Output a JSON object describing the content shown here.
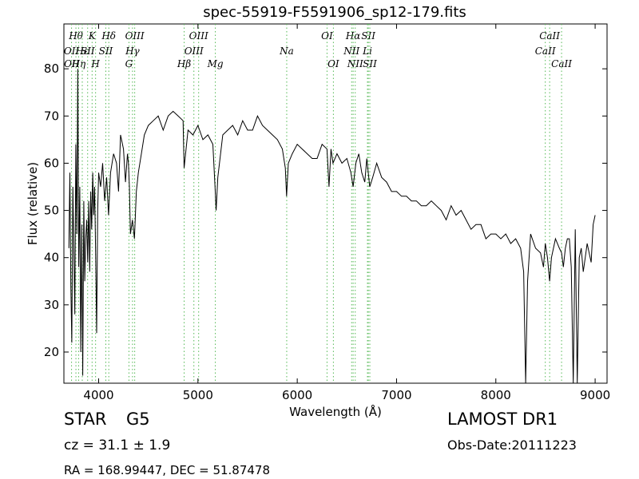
{
  "chart_data": {
    "type": "line",
    "title": "spec-55919-F5591906_sp12-179.fits",
    "xlabel": "Wavelength (Å)",
    "ylabel": "Flux (relative)",
    "xlim": [
      3650,
      9120
    ],
    "ylim": [
      13.4,
      89.5
    ],
    "x_ticks": [
      4000,
      5000,
      6000,
      7000,
      8000,
      9000
    ],
    "y_ticks": [
      20,
      30,
      40,
      50,
      60,
      70,
      80
    ],
    "grid": false,
    "series": [
      {
        "color": "#000000",
        "x": [
          3700,
          3710,
          3720,
          3730,
          3740,
          3750,
          3760,
          3770,
          3780,
          3790,
          3800,
          3810,
          3820,
          3830,
          3840,
          3850,
          3860,
          3870,
          3880,
          3890,
          3900,
          3910,
          3920,
          3930,
          3940,
          3950,
          3960,
          3970,
          3980,
          3990,
          4000,
          4020,
          4040,
          4060,
          4080,
          4100,
          4120,
          4150,
          4180,
          4200,
          4220,
          4250,
          4270,
          4290,
          4300,
          4310,
          4320,
          4340,
          4360,
          4380,
          4400,
          4430,
          4460,
          4500,
          4550,
          4600,
          4650,
          4700,
          4750,
          4800,
          4850,
          4861,
          4900,
          4950,
          5000,
          5050,
          5100,
          5150,
          5172,
          5183,
          5200,
          5250,
          5300,
          5350,
          5400,
          5450,
          5500,
          5550,
          5600,
          5650,
          5700,
          5750,
          5800,
          5850,
          5880,
          5893,
          5910,
          5950,
          6000,
          6050,
          6100,
          6150,
          6200,
          6250,
          6300,
          6320,
          6340,
          6360,
          6400,
          6450,
          6500,
          6540,
          6563,
          6590,
          6620,
          6650,
          6680,
          6700,
          6730,
          6760,
          6800,
          6850,
          6900,
          6950,
          7000,
          7050,
          7100,
          7150,
          7200,
          7250,
          7300,
          7350,
          7400,
          7450,
          7500,
          7550,
          7600,
          7650,
          7700,
          7750,
          7800,
          7850,
          7900,
          7950,
          8000,
          8050,
          8100,
          8150,
          8200,
          8250,
          8280,
          8300,
          8320,
          8350,
          8400,
          8450,
          8480,
          8498,
          8520,
          8542,
          8560,
          8600,
          8640,
          8662,
          8680,
          8700,
          8720,
          8740,
          8760,
          8780,
          8800,
          8820,
          8840,
          8860,
          8880,
          8900,
          8920,
          8940,
          8960,
          8980,
          9000
        ],
        "y": [
          42,
          58,
          34,
          22,
          55,
          42,
          28,
          64,
          45,
          80,
          38,
          55,
          20,
          47,
          15,
          52,
          35,
          44,
          48,
          39,
          52,
          37,
          54,
          46,
          58,
          49,
          55,
          40,
          24,
          50,
          58,
          55,
          60,
          52,
          57,
          49,
          58,
          62,
          60,
          54,
          66,
          63,
          56,
          62,
          60,
          55,
          45,
          48,
          44,
          54,
          58,
          62,
          66,
          68,
          69,
          70,
          67,
          70,
          71,
          70,
          69,
          59,
          67,
          66,
          68,
          65,
          66,
          64,
          55,
          50,
          57,
          66,
          67,
          68,
          66,
          69,
          67,
          67,
          70,
          68,
          67,
          66,
          65,
          63,
          59,
          53,
          60,
          62,
          64,
          63,
          62,
          61,
          61,
          64,
          63,
          55,
          63,
          60,
          62,
          60,
          61,
          58,
          55,
          60,
          62,
          58,
          56,
          61,
          55,
          57,
          60,
          57,
          56,
          54,
          54,
          53,
          53,
          52,
          52,
          51,
          51,
          52,
          51,
          50,
          48,
          51,
          49,
          50,
          48,
          46,
          47,
          47,
          44,
          45,
          45,
          44,
          45,
          43,
          44,
          42,
          37,
          12,
          35,
          45,
          42,
          41,
          38,
          43,
          40,
          35,
          40,
          44,
          42,
          41,
          38,
          42,
          44,
          44,
          38,
          12,
          46,
          12,
          40,
          42,
          37,
          40,
          43,
          41,
          39,
          47,
          49
        ]
      }
    ],
    "line_marks": [
      {
        "label": "OII",
        "x": 3727,
        "row": 1
      },
      {
        "label": "Hθ",
        "x": 3771,
        "row": 0
      },
      {
        "label": "OII",
        "x": 3729,
        "row": 2
      },
      {
        "label": "Hη",
        "x": 3798,
        "row": 2
      },
      {
        "label": "Hε",
        "x": 3835,
        "row": 1
      },
      {
        "label": "K",
        "x": 3934,
        "row": 0
      },
      {
        "label": "SII",
        "x": 3889,
        "row": 1
      },
      {
        "label": "H",
        "x": 3969,
        "row": 2
      },
      {
        "label": "Hδ",
        "x": 4102,
        "row": 0
      },
      {
        "label": "SII",
        "x": 4072,
        "row": 1
      },
      {
        "label": "OIII",
        "x": 4363,
        "row": 0
      },
      {
        "label": "Hγ",
        "x": 4341,
        "row": 1
      },
      {
        "label": "G",
        "x": 4305,
        "row": 2
      },
      {
        "label": "OIII",
        "x": 5007,
        "row": 0
      },
      {
        "label": "OIII",
        "x": 4959,
        "row": 1
      },
      {
        "label": "Hβ",
        "x": 4861,
        "row": 2
      },
      {
        "label": "Mg",
        "x": 5175,
        "row": 2
      },
      {
        "label": "Na",
        "x": 5894,
        "row": 1
      },
      {
        "label": "OI",
        "x": 6300,
        "row": 0
      },
      {
        "label": "OI",
        "x": 6364,
        "row": 2
      },
      {
        "label": "Hα",
        "x": 6563,
        "row": 0
      },
      {
        "label": "SII",
        "x": 6716,
        "row": 0
      },
      {
        "label": "NII",
        "x": 6548,
        "row": 1
      },
      {
        "label": "Li",
        "x": 6707,
        "row": 1
      },
      {
        "label": "NII",
        "x": 6584,
        "row": 2
      },
      {
        "label": "SII",
        "x": 6731,
        "row": 2
      },
      {
        "label": "CaII",
        "x": 8542,
        "row": 0
      },
      {
        "label": "CaII",
        "x": 8498,
        "row": 1
      },
      {
        "label": "CaII",
        "x": 8662,
        "row": 2
      }
    ]
  },
  "footer": {
    "object_class": "STAR",
    "subclass": "G5",
    "survey": "LAMOST DR1",
    "cz": "cz = 31.1  ± 1.9",
    "obs_date": "Obs-Date:20111223",
    "radec": "RA = 168.99447, DEC = 51.87478"
  }
}
